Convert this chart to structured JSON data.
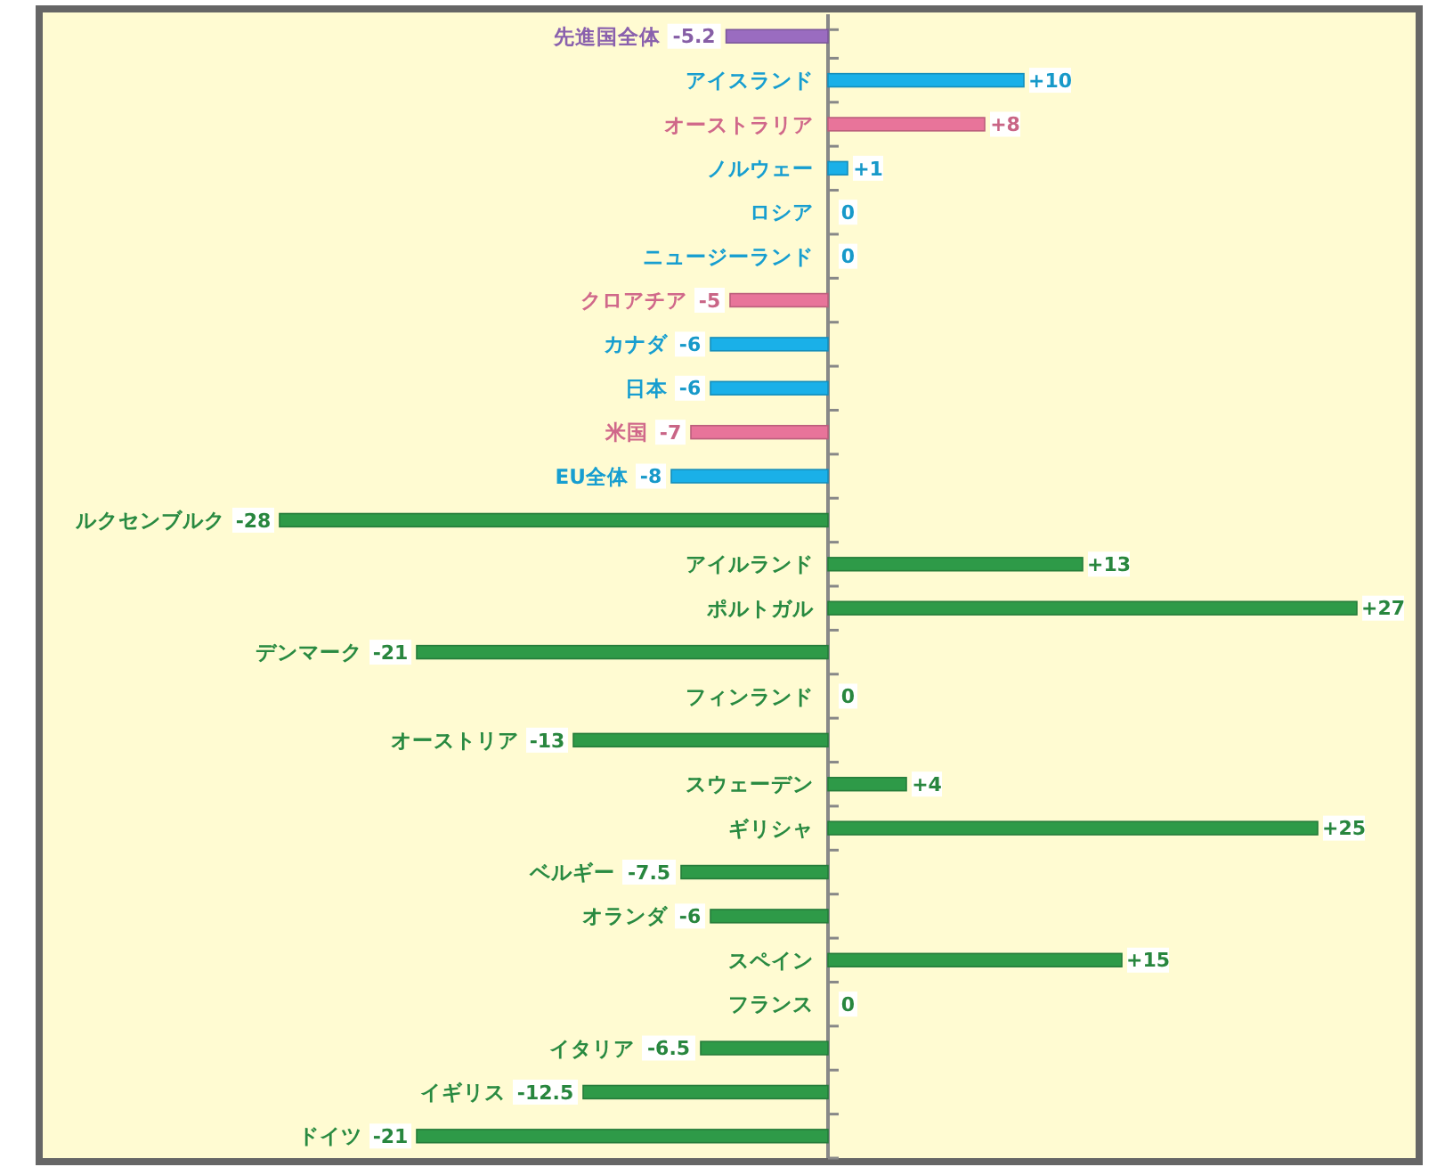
{
  "chart_data": {
    "type": "bar",
    "orientation": "horizontal",
    "categories": [
      "先進国全体",
      "アイスランド",
      "オーストラリア",
      "ノルウェー",
      "ロシア",
      "ニュージーランド",
      "クロアチア",
      "カナダ",
      "日本",
      "米国",
      "EU全体",
      "ルクセンブルク",
      "アイルランド",
      "ポルトガル",
      "デンマーク",
      "フィンランド",
      "オーストリア",
      "スウェーデン",
      "ギリシャ",
      "ベルギー",
      "オランダ",
      "スペイン",
      "フランス",
      "イタリア",
      "イギリス",
      "ドイツ"
    ],
    "values": [
      -5.2,
      10,
      8,
      1,
      0,
      0,
      -5,
      -6,
      -6,
      -7,
      -8,
      -28,
      13,
      27,
      -21,
      0,
      -13,
      4,
      25,
      -7.5,
      -6,
      15,
      0,
      -6.5,
      -12.5,
      -21
    ],
    "value_labels": [
      "-5.2",
      "+10",
      "+8",
      "+1",
      "0",
      "0",
      "-5",
      "-6",
      "-6",
      "-7",
      "-8",
      "-28",
      "+13",
      "+27",
      "-21",
      "0",
      "-13",
      "+4",
      "+25",
      "-7.5",
      "-6",
      "+15",
      "0",
      "-6.5",
      "-12.5",
      "-21"
    ],
    "colors": [
      "#9a6cc0",
      "#1ab0e8",
      "#e8749a",
      "#1ab0e8",
      "#1ab0e8",
      "#1ab0e8",
      "#e8749a",
      "#1ab0e8",
      "#1ab0e8",
      "#e8749a",
      "#1ab0e8",
      "#2e9a48",
      "#2e9a48",
      "#2e9a48",
      "#2e9a48",
      "#2e9a48",
      "#2e9a48",
      "#2e9a48",
      "#2e9a48",
      "#2e9a48",
      "#2e9a48",
      "#2e9a48",
      "#2e9a48",
      "#2e9a48",
      "#2e9a48",
      "#2e9a48"
    ],
    "xlim": [
      -40,
      30
    ]
  }
}
